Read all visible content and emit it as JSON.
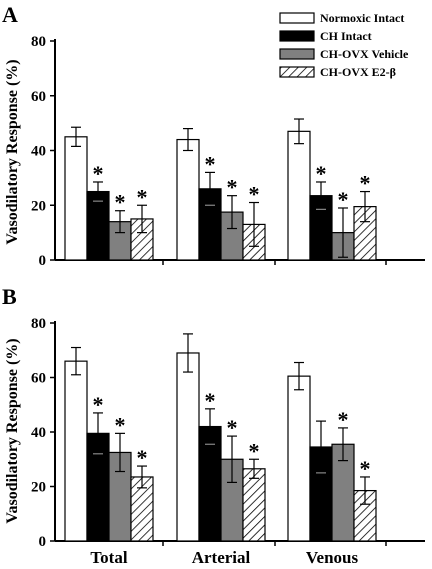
{
  "figure": {
    "legend": [
      {
        "label": "Normoxic Intact",
        "fill": "#ffffff",
        "pattern": "none"
      },
      {
        "label": "CH Intact",
        "fill": "#000000",
        "pattern": "none"
      },
      {
        "label": "CH-OVX Vehicle",
        "fill": "#808080",
        "pattern": "none"
      },
      {
        "label": "CH-OVX E2-β",
        "fill": "#ffffff",
        "pattern": "hatch"
      }
    ],
    "ylabel": "Vasodilatory Response (%)",
    "significance_marker": "*"
  },
  "chart_data": [
    {
      "type": "bar",
      "panel": "A",
      "categories": [
        "Total",
        "Arterial",
        "Venous"
      ],
      "ylabel": "Vasodilatory Response (%)",
      "ylim": [
        0,
        80
      ],
      "yticks": [
        0,
        20,
        40,
        60,
        80
      ],
      "series": [
        {
          "name": "Normoxic Intact",
          "values": [
            45,
            44,
            47
          ],
          "errors": [
            3.5,
            4,
            4.5
          ],
          "significant": [
            false,
            false,
            false
          ]
        },
        {
          "name": "CH Intact",
          "values": [
            25,
            26,
            23.5
          ],
          "errors": [
            3.5,
            6,
            5
          ],
          "significant": [
            true,
            true,
            true
          ]
        },
        {
          "name": "CH-OVX Vehicle",
          "values": [
            14,
            17.5,
            10
          ],
          "errors": [
            4,
            6,
            9
          ],
          "significant": [
            true,
            true,
            true
          ]
        },
        {
          "name": "CH-OVX E2-β",
          "values": [
            15,
            13,
            19.5
          ],
          "errors": [
            5,
            8,
            5.5
          ],
          "significant": [
            true,
            true,
            true
          ]
        }
      ]
    },
    {
      "type": "bar",
      "panel": "B",
      "categories": [
        "Total",
        "Arterial",
        "Venous"
      ],
      "ylabel": "Vasodilatory Response (%)",
      "ylim": [
        0,
        80
      ],
      "yticks": [
        0,
        20,
        40,
        60,
        80
      ],
      "series": [
        {
          "name": "Normoxic Intact",
          "values": [
            66,
            69,
            60.5
          ],
          "errors": [
            5,
            7,
            5
          ],
          "significant": [
            false,
            false,
            false
          ]
        },
        {
          "name": "CH Intact",
          "values": [
            39.5,
            42,
            34.5
          ],
          "errors": [
            7.5,
            6.5,
            9.5
          ],
          "significant": [
            true,
            true,
            false
          ]
        },
        {
          "name": "CH-OVX Vehicle",
          "values": [
            32.5,
            30,
            35.5
          ],
          "errors": [
            7,
            8.5,
            6
          ],
          "significant": [
            true,
            true,
            true
          ]
        },
        {
          "name": "CH-OVX E2-β",
          "values": [
            23.5,
            26.5,
            18.5
          ],
          "errors": [
            4,
            3.5,
            5
          ],
          "significant": [
            true,
            true,
            true
          ]
        }
      ]
    }
  ]
}
